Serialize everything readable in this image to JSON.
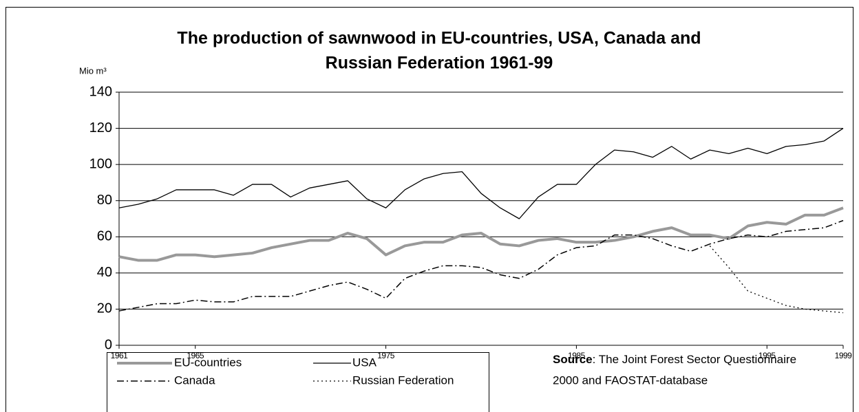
{
  "chart_data": {
    "type": "line",
    "title": [
      "The production of sawnwood in EU-countries, USA, Canada and",
      "Russian Federation 1961-99"
    ],
    "y_label": "Mio m³",
    "x": [
      1961,
      1962,
      1963,
      1964,
      1965,
      1966,
      1967,
      1968,
      1969,
      1970,
      1971,
      1972,
      1973,
      1974,
      1975,
      1976,
      1977,
      1978,
      1979,
      1980,
      1981,
      1982,
      1983,
      1984,
      1985,
      1986,
      1987,
      1988,
      1989,
      1990,
      1991,
      1992,
      1993,
      1994,
      1995,
      1996,
      1997,
      1998,
      1999
    ],
    "xlim": [
      1961,
      1999
    ],
    "xticks": [
      1961,
      1965,
      1975,
      1985,
      1995,
      1999
    ],
    "ylim": [
      0,
      140
    ],
    "yticks": [
      0,
      20,
      40,
      60,
      80,
      100,
      120,
      140
    ],
    "grid": true,
    "series": [
      {
        "name": "EU-countries",
        "color": "#999999",
        "width": 4,
        "dash": "solid",
        "values": [
          49,
          47,
          47,
          50,
          50,
          49,
          50,
          51,
          54,
          56,
          58,
          58,
          62,
          59,
          50,
          55,
          57,
          57,
          61,
          62,
          56,
          55,
          58,
          59,
          57,
          57,
          58,
          60,
          63,
          65,
          61,
          61,
          59,
          66,
          68,
          67,
          72,
          72,
          76
        ]
      },
      {
        "name": "USA",
        "color": "#000000",
        "width": 1.3,
        "dash": "solid",
        "values": [
          76,
          78,
          81,
          86,
          86,
          86,
          83,
          89,
          89,
          82,
          87,
          89,
          91,
          81,
          76,
          86,
          92,
          95,
          96,
          84,
          76,
          70,
          82,
          89,
          89,
          100,
          108,
          107,
          104,
          110,
          103,
          108,
          106,
          109,
          106,
          110,
          111,
          113,
          120
        ]
      },
      {
        "name": "Canada",
        "color": "#000000",
        "width": 1.5,
        "dash": "dashdot",
        "values": [
          19,
          21,
          23,
          23,
          25,
          24,
          24,
          27,
          27,
          27,
          30,
          33,
          35,
          31,
          26,
          37,
          41,
          44,
          44,
          43,
          39,
          37,
          42,
          50,
          54,
          55,
          61,
          61,
          59,
          55,
          52,
          56,
          59,
          61,
          60,
          63,
          64,
          65,
          69
        ]
      },
      {
        "name": "Russian Federation",
        "color": "#000000",
        "width": 1.3,
        "dash": "dotted",
        "values": [
          null,
          null,
          null,
          null,
          null,
          null,
          null,
          null,
          null,
          null,
          null,
          null,
          null,
          null,
          null,
          null,
          null,
          null,
          null,
          null,
          null,
          null,
          null,
          null,
          null,
          null,
          null,
          null,
          null,
          null,
          null,
          55,
          43,
          30,
          26,
          22,
          20,
          19,
          18
        ]
      }
    ],
    "source_label": "Source",
    "source": [
      ": The Joint Forest Sector Questionnaire",
      "2000 and FAOSTAT-database"
    ]
  }
}
